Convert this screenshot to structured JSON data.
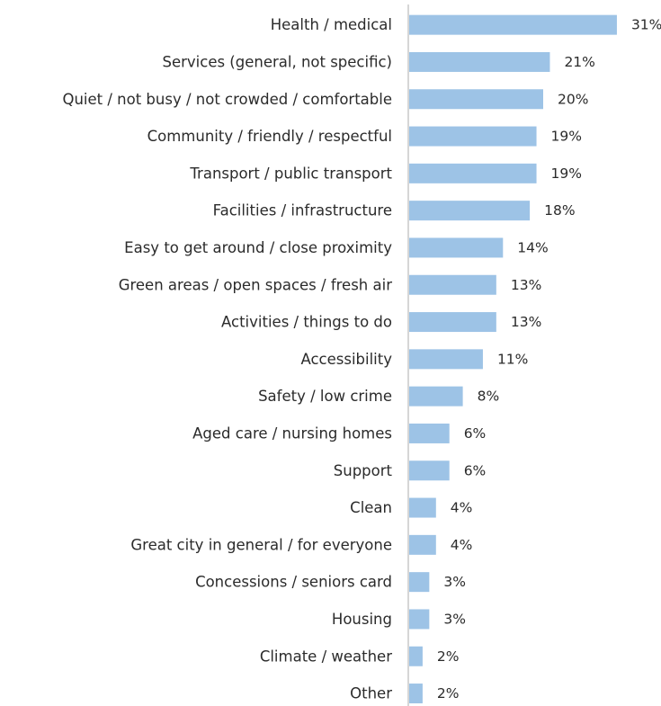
{
  "chart_data": {
    "type": "bar",
    "orientation": "horizontal",
    "categories": [
      "Health / medical",
      "Services (general, not specific)",
      "Quiet / not busy / not crowded / comfortable",
      "Community / friendly / respectful",
      "Transport / public transport",
      "Facilities / infrastructure",
      "Easy to get around / close proximity",
      "Green areas / open spaces / fresh air",
      "Activities / things to do",
      "Accessibility",
      "Safety / low crime",
      "Aged care / nursing homes",
      "Support",
      "Clean",
      "Great city in general / for everyone",
      "Concessions / seniors card",
      "Housing",
      "Climate / weather",
      "Other"
    ],
    "values": [
      31,
      21,
      20,
      19,
      19,
      18,
      14,
      13,
      13,
      11,
      8,
      6,
      6,
      4,
      4,
      3,
      3,
      2,
      2
    ],
    "value_labels": [
      "31%",
      "21%",
      "20%",
      "19%",
      "19%",
      "18%",
      "14%",
      "13%",
      "13%",
      "11%",
      "8%",
      "6%",
      "6%",
      "4%",
      "4%",
      "3%",
      "3%",
      "2%",
      "2%"
    ],
    "title": "",
    "xlabel": "",
    "ylabel": "",
    "unit": "%",
    "xlim": [
      0,
      35
    ],
    "bar_color": "#9dc3e6",
    "axis_color": "#c8c8c8",
    "text_color": "#2b2b2b",
    "grid": false,
    "legend": "none"
  }
}
